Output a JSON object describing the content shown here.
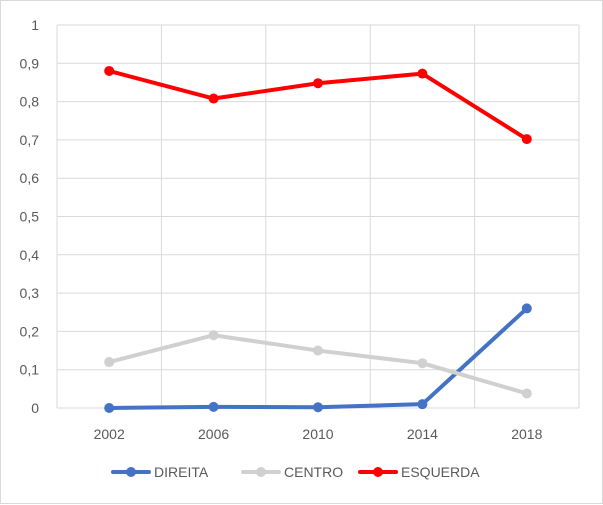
{
  "chart_data": {
    "type": "line",
    "title": "",
    "xlabel": "",
    "ylabel": "",
    "categories": [
      "2002",
      "2006",
      "2010",
      "2014",
      "2018"
    ],
    "ylim": [
      0,
      1
    ],
    "yticks": [
      "0",
      "0,1",
      "0,2",
      "0,3",
      "0,4",
      "0,5",
      "0,6",
      "0,7",
      "0,8",
      "0,9",
      "1"
    ],
    "grid": true,
    "legend_position": "bottom",
    "series": [
      {
        "name": "DIREITA",
        "color": "#4472c4",
        "values": [
          0.0,
          0.003,
          0.002,
          0.01,
          0.26
        ]
      },
      {
        "name": "CENTRO",
        "color": "#d0d0d0",
        "values": [
          0.12,
          0.19,
          0.15,
          0.117,
          0.038
        ]
      },
      {
        "name": "ESQUERDA",
        "color": "#ff0000",
        "values": [
          0.88,
          0.808,
          0.848,
          0.873,
          0.702
        ]
      }
    ]
  }
}
